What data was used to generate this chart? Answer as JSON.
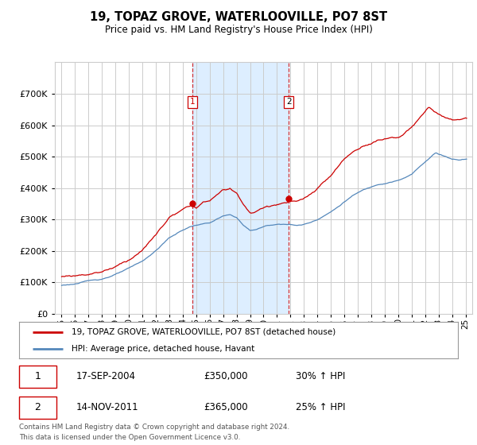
{
  "title": "19, TOPAZ GROVE, WATERLOOVILLE, PO7 8ST",
  "subtitle": "Price paid vs. HM Land Registry's House Price Index (HPI)",
  "legend_line1": "19, TOPAZ GROVE, WATERLOOVILLE, PO7 8ST (detached house)",
  "legend_line2": "HPI: Average price, detached house, Havant",
  "sale1_date": "17-SEP-2004",
  "sale1_price": "£350,000",
  "sale1_hpi": "30% ↑ HPI",
  "sale1_year": 2004.72,
  "sale1_value": 350000,
  "sale2_date": "14-NOV-2011",
  "sale2_price": "£365,000",
  "sale2_hpi": "25% ↑ HPI",
  "sale2_year": 2011.88,
  "sale2_value": 365000,
  "red_line_color": "#cc0000",
  "blue_line_color": "#5588bb",
  "background_color": "#ffffff",
  "shaded_region_color": "#ddeeff",
  "grid_color": "#cccccc",
  "footer_text": "Contains HM Land Registry data © Crown copyright and database right 2024.\nThis data is licensed under the Open Government Licence v3.0.",
  "ylim": [
    0,
    800000
  ],
  "yticks": [
    0,
    100000,
    200000,
    300000,
    400000,
    500000,
    600000,
    700000
  ],
  "xlim_start": 1994.5,
  "xlim_end": 2025.5
}
